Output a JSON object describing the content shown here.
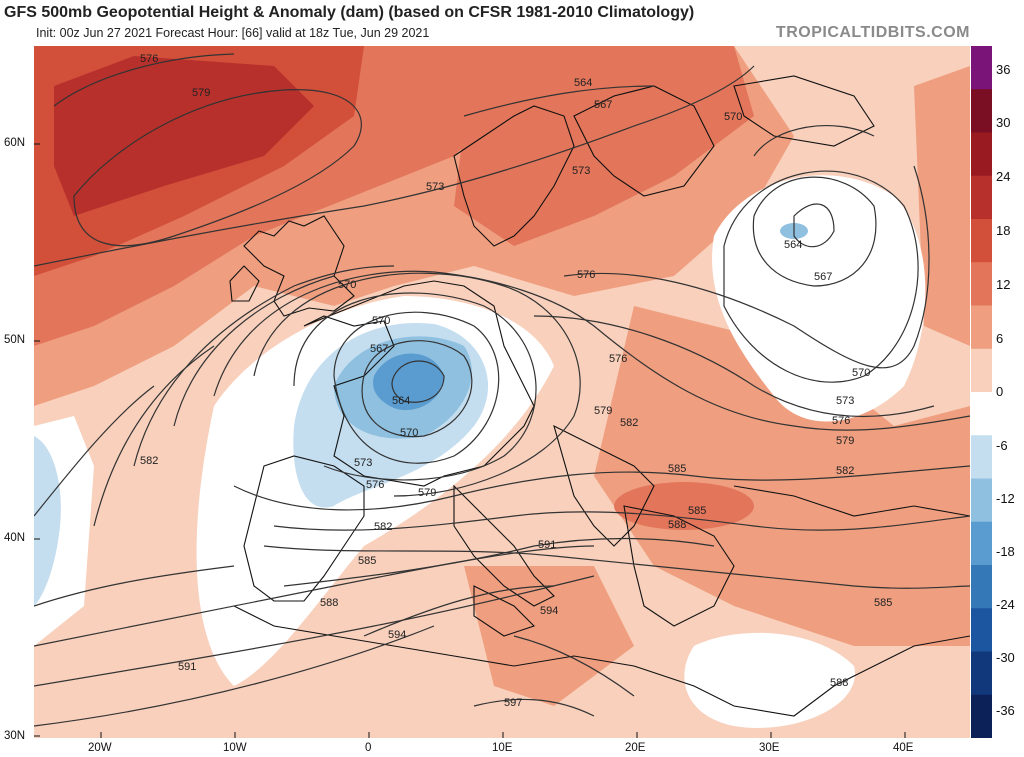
{
  "header": {
    "title": "GFS 500mb Geopotential Height & Anomaly (dam) (based on CFSR 1981-2010 Climatology)",
    "subtitle": "Init: 00z Jun 27 2021   Forecast Hour: [66]   valid at 18z Tue, Jun 29 2021",
    "brand": "TROPICALTIDBITS.COM"
  },
  "colorbar": {
    "labels": [
      "36",
      "30",
      "24",
      "18",
      "12",
      "6",
      "0",
      "-6",
      "-12",
      "-18",
      "-24",
      "-30",
      "-36"
    ],
    "colors": [
      "#7a1478",
      "#7a0e22",
      "#9a1a22",
      "#b8302c",
      "#d24f3a",
      "#e2755a",
      "#ef9f80",
      "#f8d0bc",
      "#ffffff",
      "#c4def0",
      "#8fc0e0",
      "#5a9cd0",
      "#3478b8",
      "#1d56a0",
      "#12387c",
      "#0b2158"
    ]
  },
  "axes": {
    "lat_labels": [
      "60N",
      "50N",
      "40N",
      "30N"
    ],
    "lon_labels": [
      "20W",
      "10W",
      "0",
      "10E",
      "20E",
      "30E",
      "40E"
    ]
  },
  "contour_labels": [
    "576",
    "579",
    "564",
    "567",
    "570",
    "573",
    "573",
    "570",
    "576",
    "564",
    "567",
    "576",
    "579",
    "570",
    "567",
    "564",
    "570",
    "573",
    "576",
    "579",
    "582",
    "585",
    "588",
    "591",
    "594",
    "594",
    "597",
    "591",
    "582",
    "585",
    "570",
    "573",
    "576",
    "579",
    "582",
    "585",
    "588",
    "588",
    "582",
    "585"
  ]
}
